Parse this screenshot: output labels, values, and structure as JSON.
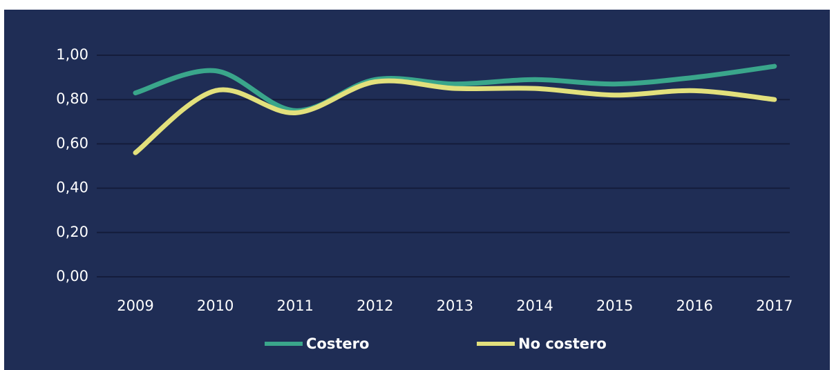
{
  "chart_data": {
    "type": "line",
    "categories": [
      "2009",
      "2010",
      "2011",
      "2012",
      "2013",
      "2014",
      "2015",
      "2016",
      "2017"
    ],
    "series": [
      {
        "name": "Costero",
        "color": "#3aa68b",
        "values": [
          0.83,
          0.93,
          0.75,
          0.89,
          0.87,
          0.89,
          0.87,
          0.9,
          0.95
        ]
      },
      {
        "name": "No costero",
        "color": "#e2e07c",
        "values": [
          0.56,
          0.84,
          0.74,
          0.88,
          0.85,
          0.85,
          0.82,
          0.84,
          0.8
        ]
      }
    ],
    "ylim": [
      0,
      1
    ],
    "yticks": [
      {
        "value": 0,
        "label": "0,00"
      },
      {
        "value": 0.2,
        "label": "0,20"
      },
      {
        "value": 0.4,
        "label": "0,40"
      },
      {
        "value": 0.6,
        "label": "0,60"
      },
      {
        "value": 0.8,
        "label": "0,80"
      },
      {
        "value": 1,
        "label": "1,00"
      }
    ],
    "grid": true,
    "smooth": true,
    "legend": "bottom"
  }
}
